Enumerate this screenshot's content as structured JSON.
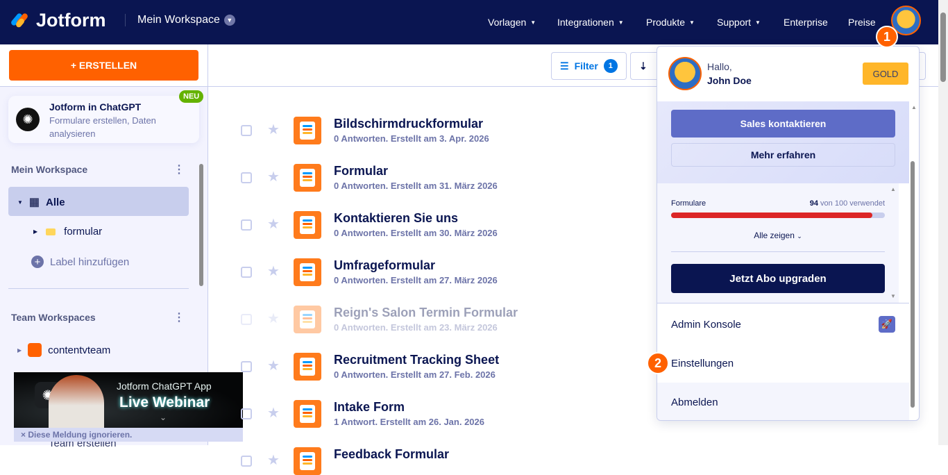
{
  "nav": {
    "brand": "Jotform",
    "workspace": "Mein Workspace",
    "items": [
      {
        "label": "Vorlagen",
        "has_menu": true
      },
      {
        "label": "Integrationen",
        "has_menu": true
      },
      {
        "label": "Produkte",
        "has_menu": true
      },
      {
        "label": "Support",
        "has_menu": true
      },
      {
        "label": "Enterprise",
        "has_menu": false
      },
      {
        "label": "Preise",
        "has_menu": false
      }
    ],
    "colors": {
      "bg": "#0a1551",
      "accent": "#ff6100"
    }
  },
  "steps": [
    "1",
    "2"
  ],
  "sidebar": {
    "create_label": "+ ERSTELLEN",
    "promo": {
      "title": "Jotform in ChatGPT",
      "subtitle": "Formulare erstellen, Daten analysieren",
      "badge": "NEU"
    },
    "my_workspace": {
      "heading": "Mein Workspace",
      "items": [
        {
          "label": "Alle",
          "selected": true
        },
        {
          "label": "formular"
        },
        {
          "label": "Label hinzufügen"
        }
      ]
    },
    "team_workspaces": {
      "heading": "Team Workspaces",
      "items": [
        {
          "label": "contentvteam"
        },
        {
          "label": "Team erstellen"
        }
      ]
    },
    "banner": {
      "line1": "Jotform ChatGPT App",
      "line2": "Live Webinar",
      "dismiss": "Diese Meldung ignorieren."
    }
  },
  "toolbar": {
    "filter_label": "Filter",
    "filter_count": "1",
    "sort_icon": "sort-icon"
  },
  "forms": [
    {
      "title": "Bildschirmdruckformular",
      "meta": "0 Antworten. Erstellt am 3. Apr. 2026"
    },
    {
      "title": "Formular",
      "meta": "0 Antworten. Erstellt am 31. März 2026"
    },
    {
      "title": "Kontaktieren Sie uns",
      "meta": "0 Antworten. Erstellt am 30. März 2026"
    },
    {
      "title": "Umfrageformular",
      "meta": "0 Antworten. Erstellt am 27. März 2026"
    },
    {
      "title": "Reign's Salon Termin Formular",
      "meta": "0 Antworten. Erstellt am 23. März 2026",
      "disabled": true
    },
    {
      "title": "Recruitment Tracking Sheet",
      "meta": "0 Antworten. Erstellt am 27. Feb. 2026"
    },
    {
      "title": "Intake Form",
      "meta": "1 Antwort. Erstellt am 26. Jan. 2026",
      "payment": true
    },
    {
      "title": "Feedback Formular",
      "meta": ""
    }
  ],
  "user_menu": {
    "greeting": "Hallo,",
    "name": "John Doe",
    "plan": "GOLD",
    "sales_button": "Sales kontaktieren",
    "learn_more": "Mehr erfahren",
    "usage": {
      "label": "Formulare",
      "used": "94",
      "suffix": "von 100 verwendet",
      "percent": 94
    },
    "show_all": "Alle zeigen",
    "upgrade": "Jetzt Abo upgraden",
    "items": [
      {
        "label": "Admin Konsole"
      },
      {
        "label": "Einstellungen"
      },
      {
        "label": "Abmelden"
      }
    ]
  }
}
